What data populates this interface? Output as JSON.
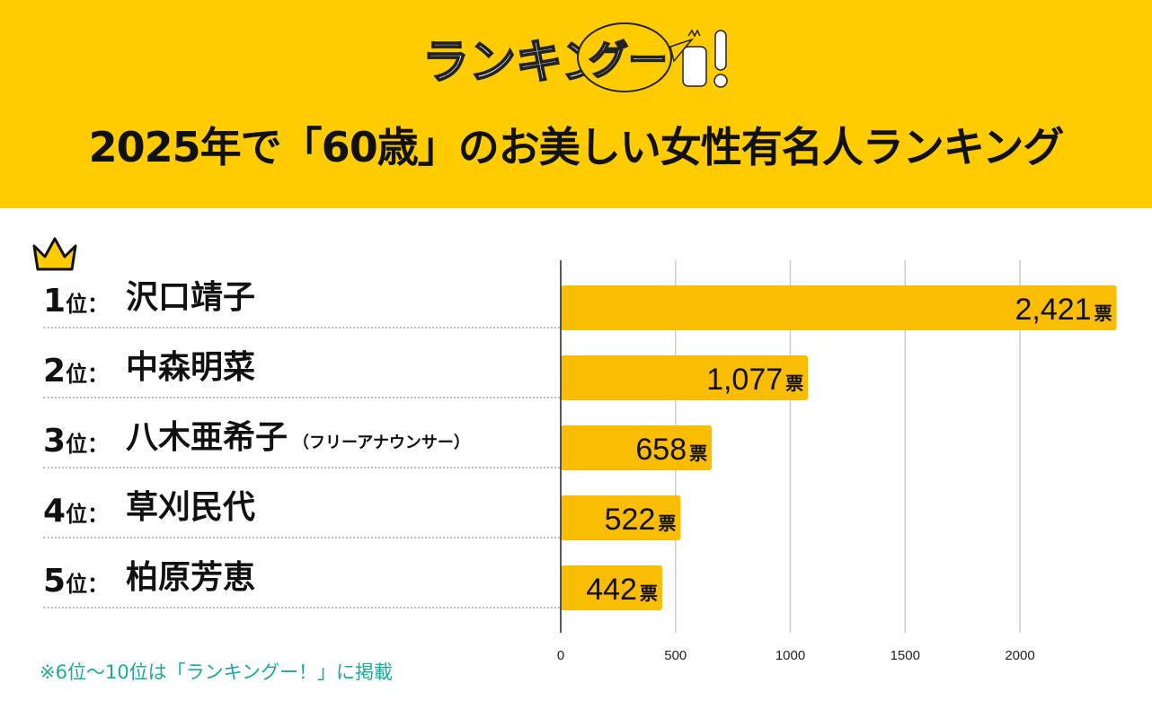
{
  "header": {
    "logo_text": "ランキングー！",
    "title": "2025年で「60歳」のお美しい女性有名人ランキング"
  },
  "colors": {
    "header": "#FFCC00",
    "bar": "#FBBC04",
    "footnote": "#1aaa9a"
  },
  "rows": [
    {
      "rank": "1",
      "rank_suffix": "位：",
      "name": "沢口靖子",
      "note": ""
    },
    {
      "rank": "2",
      "rank_suffix": "位：",
      "name": "中森明菜",
      "note": ""
    },
    {
      "rank": "3",
      "rank_suffix": "位：",
      "name": "八木亜希子",
      "note": "（フリーアナウンサー）"
    },
    {
      "rank": "4",
      "rank_suffix": "位：",
      "name": "草刈民代",
      "note": ""
    },
    {
      "rank": "5",
      "rank_suffix": "位：",
      "name": "柏原芳恵",
      "note": ""
    }
  ],
  "chart_data": {
    "type": "bar",
    "orientation": "horizontal",
    "categories": [
      "沢口靖子",
      "中森明菜",
      "八木亜希子",
      "草刈民代",
      "柏原芳恵"
    ],
    "values": [
      2421,
      1077,
      658,
      522,
      442
    ],
    "value_labels": [
      "2,421",
      "1,077",
      "658",
      "522",
      "442"
    ],
    "unit": "票",
    "xlim": [
      0,
      2421
    ],
    "xticks": [
      0,
      500,
      1000,
      1500,
      2000
    ],
    "xtick_labels": [
      "0",
      "500",
      "1000",
      "1500",
      "2000"
    ],
    "grid": true
  },
  "footnote": "※6位〜10位は「ランキングー！」に掲載"
}
